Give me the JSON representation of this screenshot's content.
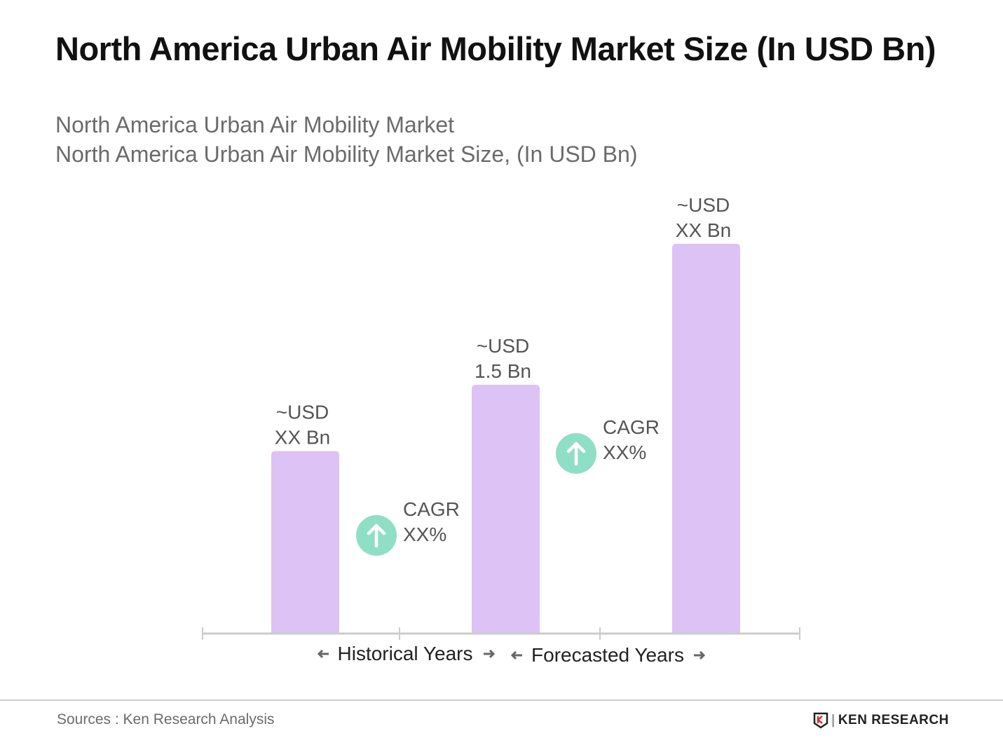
{
  "title": "North America Urban Air Mobility Market Size (In USD Bn)",
  "subtitle1": "North America Urban Air Mobility Market",
  "subtitle2": "North America Urban Air Mobility Market Size, (In USD Bn)",
  "chart_data": {
    "type": "bar",
    "categories": [
      "",
      "",
      ""
    ],
    "values": [
      1.1,
      1.5,
      2.35
    ],
    "data_labels": [
      [
        "~USD",
        "XX Bn"
      ],
      [
        "~USD",
        "1.5 Bn"
      ],
      [
        "~USD",
        "XX Bn"
      ]
    ],
    "cagr": [
      [
        "CAGR",
        "XX%"
      ],
      [
        "CAGR",
        "XX%"
      ]
    ],
    "periods": [
      "Historical Years",
      "Forecasted Years"
    ],
    "ylim": [
      0,
      2.5
    ],
    "grid": false,
    "colors": {
      "bar": "#dcc2f5",
      "cagr": "#8fdfc6",
      "axis": "#cccccc"
    }
  },
  "footer": {
    "source": "Sources : Ken Research Analysis",
    "logo": "KEN RESEARCH"
  }
}
